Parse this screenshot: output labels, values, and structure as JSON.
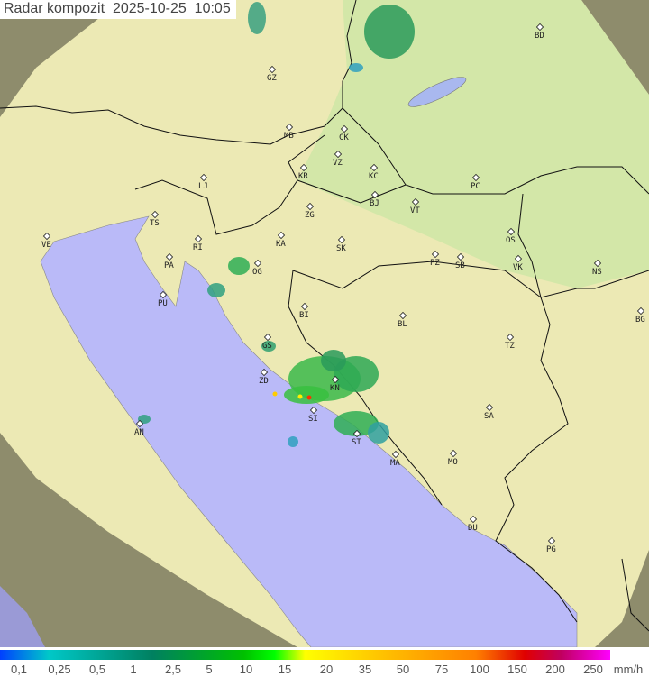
{
  "title": {
    "label": "Radar kompozit",
    "date": "2025-10-25",
    "time": "10:05"
  },
  "legend": {
    "ticks": [
      "0,1",
      "0,25",
      "0,5",
      "1",
      "2,5",
      "5",
      "10",
      "15",
      "20",
      "35",
      "50",
      "75",
      "100",
      "150",
      "200",
      "250"
    ],
    "unit": "mm/h"
  },
  "cities": [
    "BD",
    "GZ",
    "MB",
    "CK",
    "VZ",
    "KR",
    "KC",
    "PC",
    "LJ",
    "BJ",
    "VT",
    "ZG",
    "TS",
    "OS",
    "VE",
    "RI",
    "KA",
    "SK",
    "PA",
    "PZ",
    "SB",
    "VK",
    "NS",
    "OG",
    "PU",
    "BI",
    "BL",
    "BG",
    "GS",
    "TZ",
    "ZD",
    "KN",
    "SA",
    "SI",
    "AN",
    "ST",
    "MA",
    "MO",
    "DU",
    "PG"
  ],
  "colors": {
    "land": "#ece9b4",
    "plain": "#cfe6a6",
    "sea": "#babaf8",
    "outside": "#8e8c6c"
  }
}
